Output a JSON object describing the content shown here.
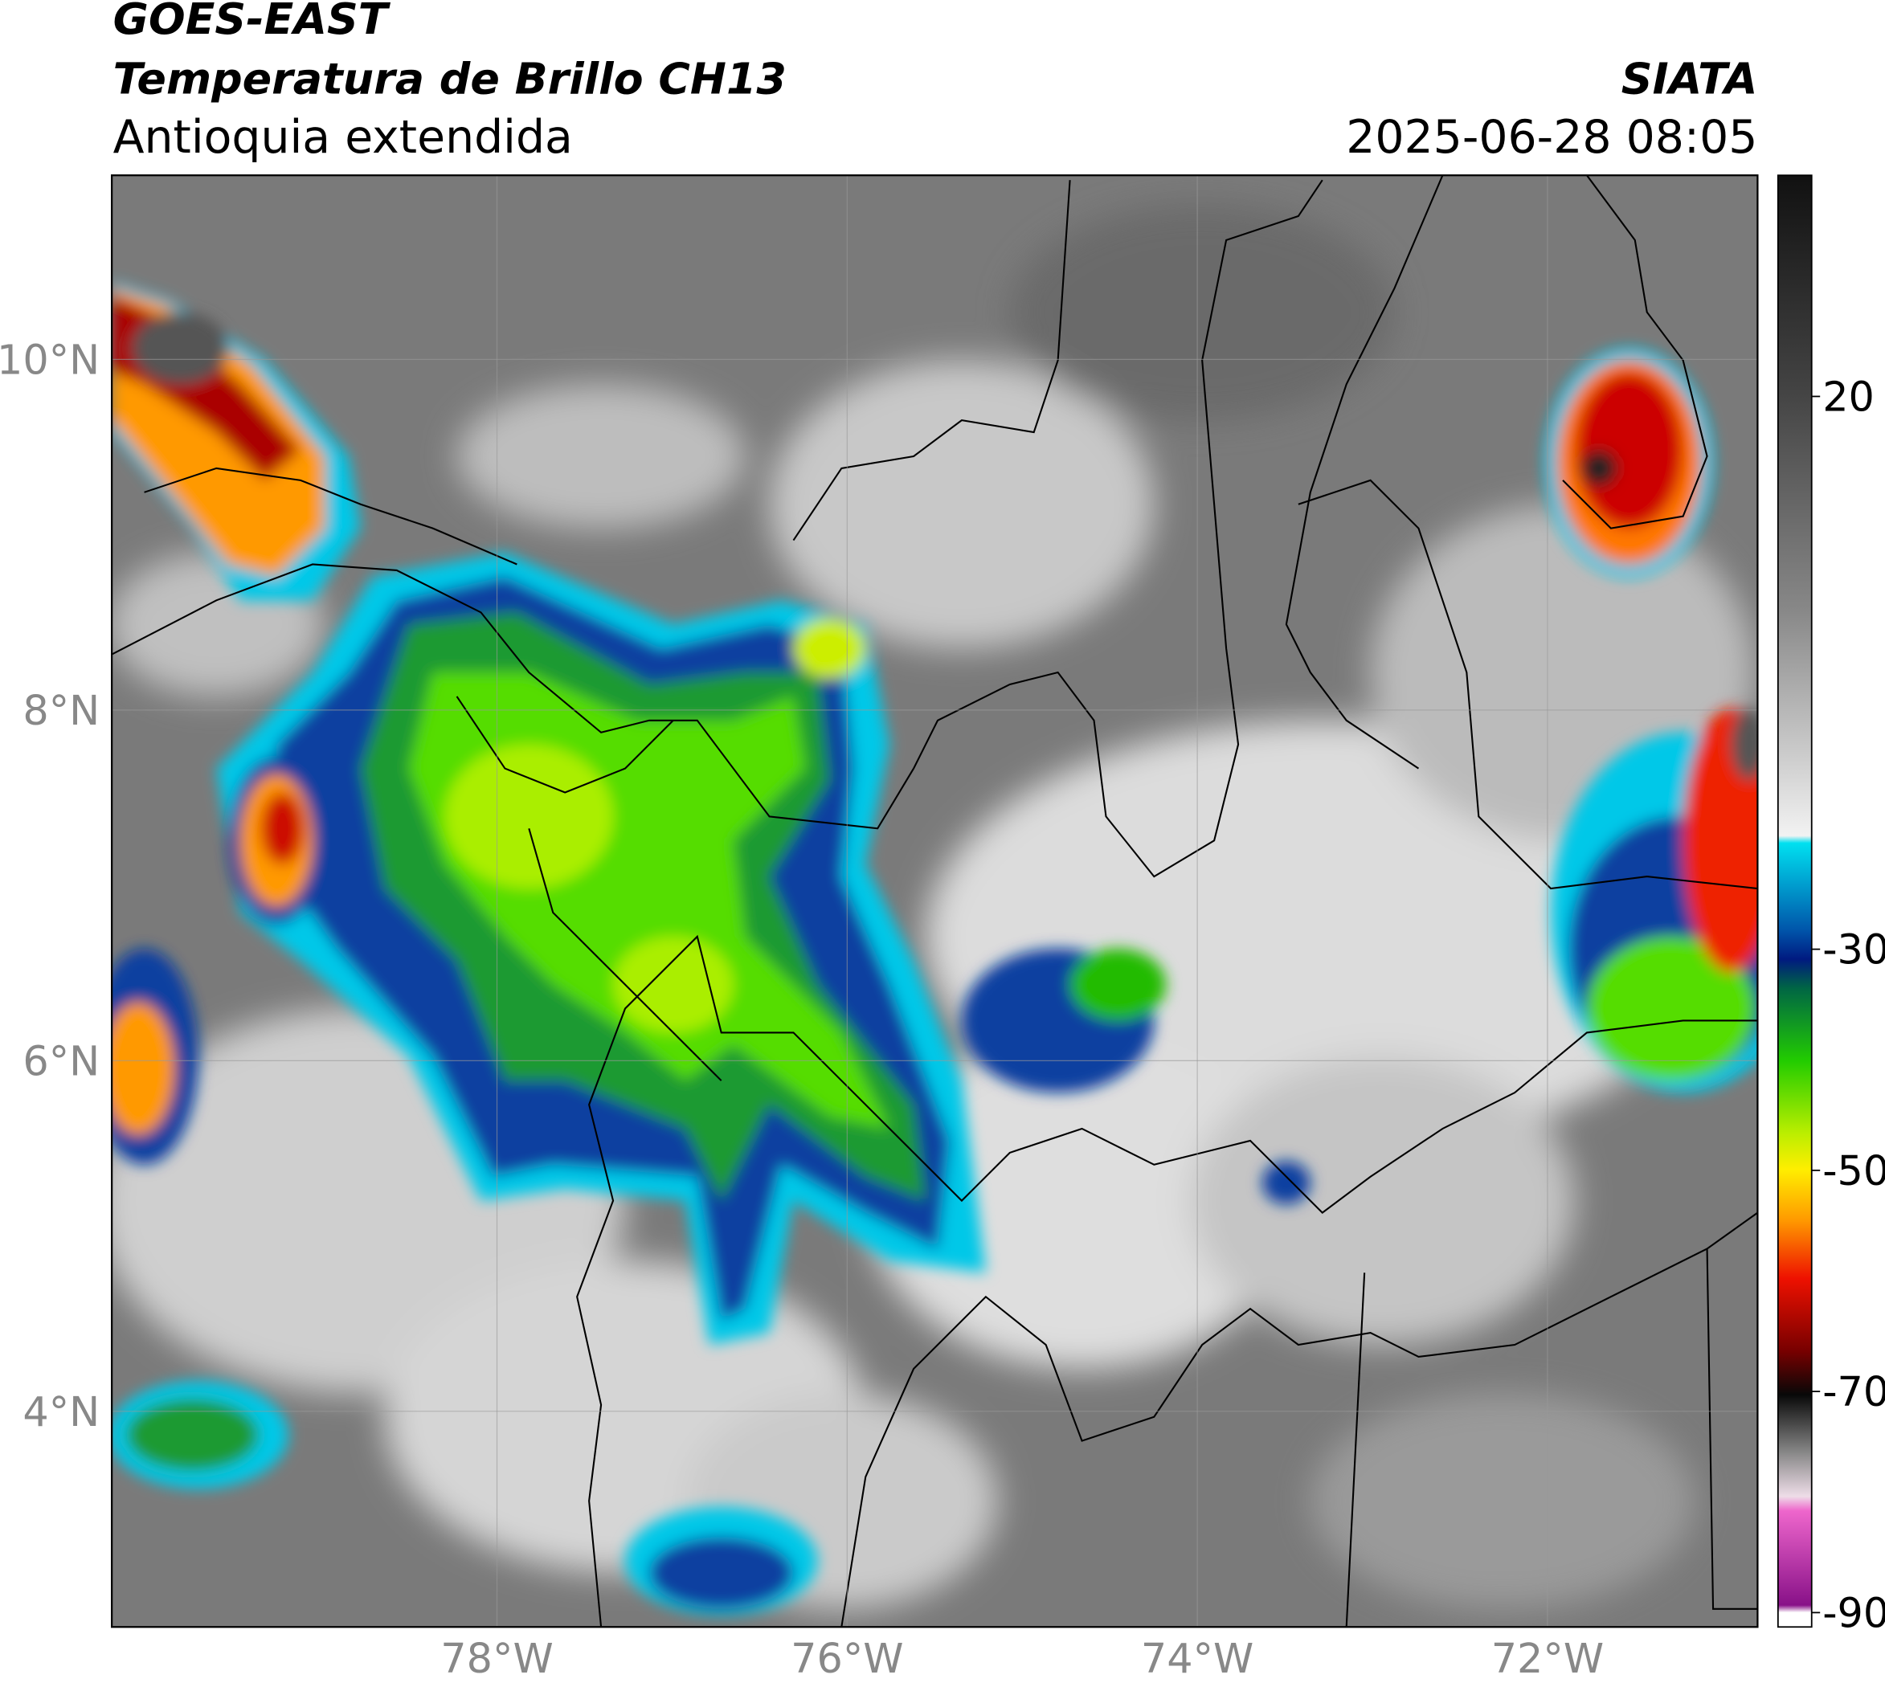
{
  "header": {
    "satellite": "GOES-EAST",
    "product": "Temperatura de Brillo CH13",
    "region": "Antioquia extendida",
    "agency": "SIATA",
    "datetime": "2025-06-28 08:05"
  },
  "chart_data": {
    "type": "map",
    "xlim": [
      -80.2,
      -70.8
    ],
    "ylim": [
      2.77,
      11.05
    ],
    "xticks": [
      {
        "value": -78,
        "label": "78°W"
      },
      {
        "value": -76,
        "label": "76°W"
      },
      {
        "value": -74,
        "label": "74°W"
      },
      {
        "value": -72,
        "label": "72°W"
      }
    ],
    "yticks": [
      {
        "value": 4,
        "label": "4°N"
      },
      {
        "value": 6,
        "label": "6°N"
      },
      {
        "value": 8,
        "label": "8°N"
      },
      {
        "value": 10,
        "label": "10°N"
      }
    ],
    "grid": true,
    "colorbar": {
      "lim": [
        -91.3,
        40
      ],
      "ticks": [
        20,
        -30,
        -50,
        -70,
        -90
      ]
    }
  }
}
